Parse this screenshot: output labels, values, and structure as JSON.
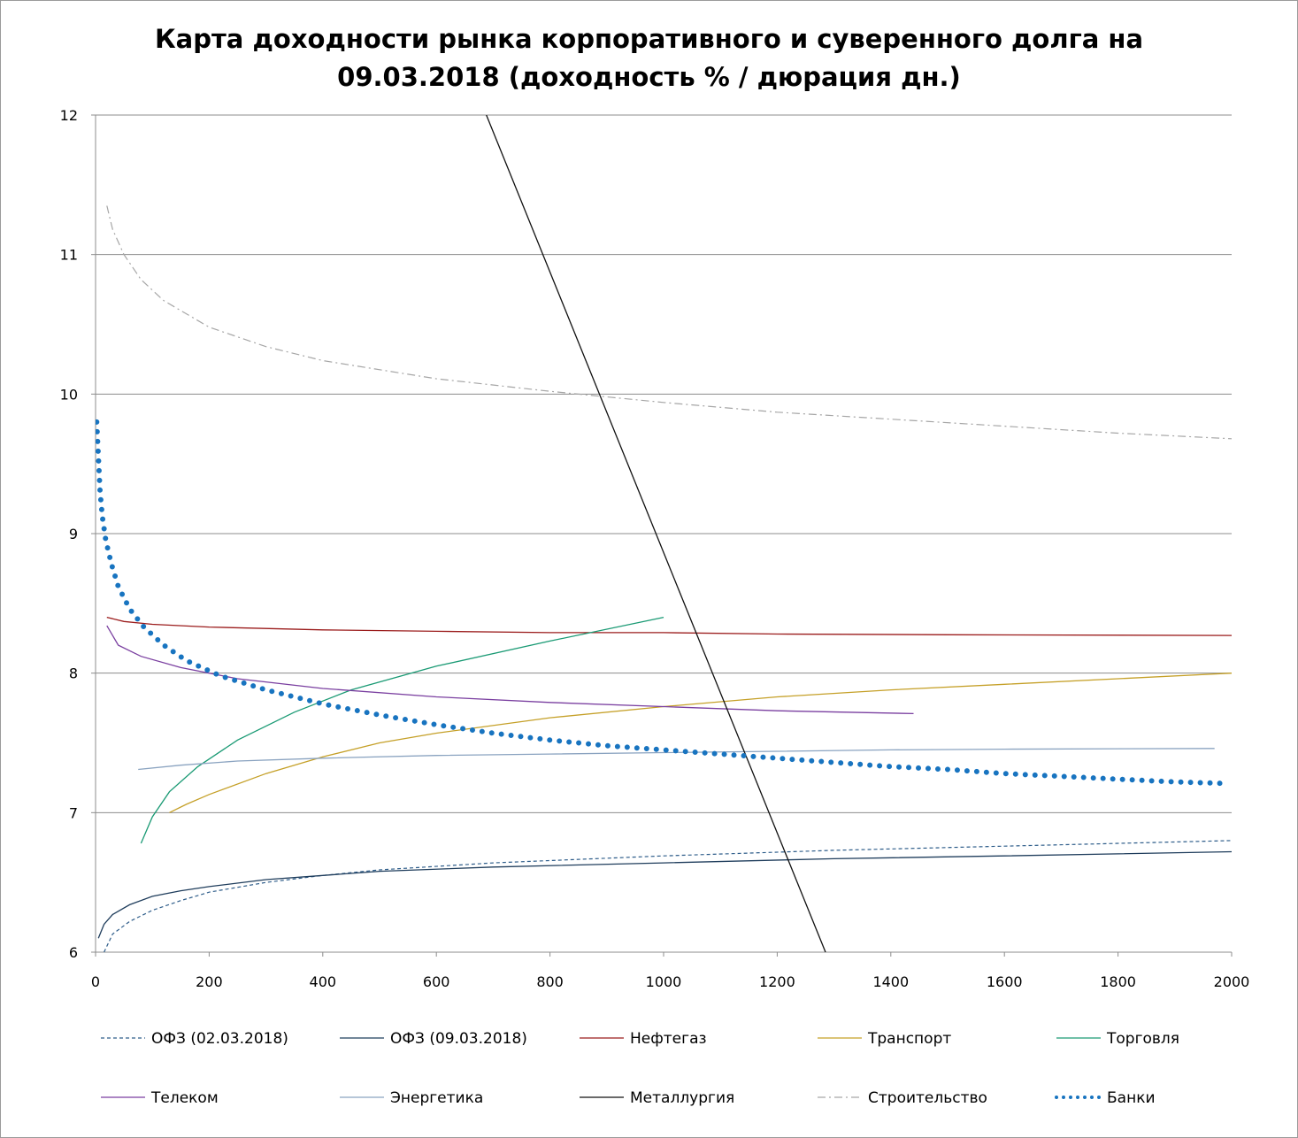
{
  "chart_data": {
    "type": "line",
    "title_lines": [
      "Карта доходности рынка корпоративного и суверенного долга на",
      "09.03.2018 (доходность % / дюрация дн.)"
    ],
    "xlabel": "",
    "ylabel": "",
    "xlim": [
      0,
      2000
    ],
    "ylim": [
      6,
      12
    ],
    "x_ticks": [
      0,
      200,
      400,
      600,
      800,
      1000,
      1200,
      1400,
      1600,
      1800,
      2000
    ],
    "y_ticks": [
      6,
      7,
      8,
      9,
      10,
      11,
      12
    ],
    "grid": "horizontal",
    "legend_position": "bottom",
    "series": [
      {
        "name": "ОФЗ (02.03.2018)",
        "color": "#2e5d8a",
        "dash": "4,3",
        "width": 1.2,
        "points": [
          [
            15,
            6.0
          ],
          [
            30,
            6.13
          ],
          [
            60,
            6.22
          ],
          [
            100,
            6.3
          ],
          [
            150,
            6.37
          ],
          [
            200,
            6.43
          ],
          [
            300,
            6.5
          ],
          [
            400,
            6.55
          ],
          [
            500,
            6.59
          ],
          [
            700,
            6.64
          ],
          [
            1000,
            6.69
          ],
          [
            1300,
            6.73
          ],
          [
            1600,
            6.76
          ],
          [
            2000,
            6.8
          ]
        ]
      },
      {
        "name": "ОФЗ (09.03.2018)",
        "color": "#1f3d5c",
        "dash": "",
        "width": 1.3,
        "points": [
          [
            5,
            6.1
          ],
          [
            15,
            6.2
          ],
          [
            30,
            6.27
          ],
          [
            60,
            6.34
          ],
          [
            100,
            6.4
          ],
          [
            150,
            6.44
          ],
          [
            200,
            6.47
          ],
          [
            300,
            6.52
          ],
          [
            400,
            6.55
          ],
          [
            500,
            6.58
          ],
          [
            700,
            6.61
          ],
          [
            1000,
            6.64
          ],
          [
            1300,
            6.67
          ],
          [
            1600,
            6.69
          ],
          [
            2000,
            6.72
          ]
        ]
      },
      {
        "name": "Нефтегаз",
        "color": "#9b1c1c",
        "dash": "",
        "width": 1.3,
        "points": [
          [
            20,
            8.4
          ],
          [
            50,
            8.37
          ],
          [
            100,
            8.35
          ],
          [
            200,
            8.33
          ],
          [
            400,
            8.31
          ],
          [
            600,
            8.3
          ],
          [
            800,
            8.29
          ],
          [
            1000,
            8.29
          ],
          [
            1200,
            8.28
          ],
          [
            1500,
            8.275
          ],
          [
            2000,
            8.27
          ]
        ]
      },
      {
        "name": "Транспорт",
        "color": "#c5a028",
        "dash": "",
        "width": 1.3,
        "points": [
          [
            130,
            7.0
          ],
          [
            160,
            7.06
          ],
          [
            200,
            7.13
          ],
          [
            300,
            7.28
          ],
          [
            400,
            7.4
          ],
          [
            500,
            7.5
          ],
          [
            600,
            7.57
          ],
          [
            800,
            7.68
          ],
          [
            1000,
            7.76
          ],
          [
            1200,
            7.83
          ],
          [
            1400,
            7.88
          ],
          [
            1600,
            7.92
          ],
          [
            1800,
            7.96
          ],
          [
            2000,
            8.0
          ]
        ]
      },
      {
        "name": "Торговля",
        "color": "#1a9a74",
        "dash": "",
        "width": 1.3,
        "points": [
          [
            80,
            6.78
          ],
          [
            100,
            6.97
          ],
          [
            130,
            7.15
          ],
          [
            180,
            7.33
          ],
          [
            250,
            7.52
          ],
          [
            350,
            7.72
          ],
          [
            450,
            7.88
          ],
          [
            600,
            8.05
          ],
          [
            800,
            8.23
          ],
          [
            1000,
            8.4
          ]
        ]
      },
      {
        "name": "Телеком",
        "color": "#7a3fa0",
        "dash": "",
        "width": 1.3,
        "points": [
          [
            20,
            8.34
          ],
          [
            40,
            8.2
          ],
          [
            80,
            8.12
          ],
          [
            150,
            8.04
          ],
          [
            250,
            7.96
          ],
          [
            400,
            7.89
          ],
          [
            600,
            7.83
          ],
          [
            800,
            7.79
          ],
          [
            1000,
            7.76
          ],
          [
            1200,
            7.73
          ],
          [
            1440,
            7.71
          ]
        ]
      },
      {
        "name": "Энергетика",
        "color": "#8aa3c0",
        "dash": "",
        "width": 1.3,
        "points": [
          [
            75,
            7.31
          ],
          [
            150,
            7.34
          ],
          [
            250,
            7.37
          ],
          [
            400,
            7.39
          ],
          [
            600,
            7.41
          ],
          [
            800,
            7.42
          ],
          [
            1000,
            7.43
          ],
          [
            1200,
            7.44
          ],
          [
            1400,
            7.45
          ],
          [
            1600,
            7.455
          ],
          [
            1970,
            7.46
          ]
        ]
      },
      {
        "name": "Металлургия",
        "color": "#111111",
        "dash": "",
        "width": 1.3,
        "points": [
          [
            688,
            12.0
          ],
          [
            1285,
            6.0
          ]
        ]
      },
      {
        "name": "Строительство",
        "color": "#a6a6a6",
        "dash": "9,4,2,4",
        "width": 1.2,
        "points": [
          [
            20,
            11.35
          ],
          [
            30,
            11.18
          ],
          [
            50,
            11.0
          ],
          [
            80,
            10.82
          ],
          [
            120,
            10.67
          ],
          [
            200,
            10.48
          ],
          [
            300,
            10.34
          ],
          [
            400,
            10.24
          ],
          [
            600,
            10.11
          ],
          [
            800,
            10.02
          ],
          [
            1000,
            9.94
          ],
          [
            1200,
            9.87
          ],
          [
            1400,
            9.82
          ],
          [
            1600,
            9.77
          ],
          [
            1800,
            9.72
          ],
          [
            2000,
            9.68
          ]
        ]
      },
      {
        "name": "Банки",
        "color": "#1874c0",
        "dash": "0,11",
        "width": 6,
        "points": [
          [
            2,
            9.8
          ],
          [
            5,
            9.55
          ],
          [
            8,
            9.3
          ],
          [
            12,
            9.12
          ],
          [
            18,
            8.95
          ],
          [
            28,
            8.78
          ],
          [
            40,
            8.62
          ],
          [
            60,
            8.46
          ],
          [
            85,
            8.33
          ],
          [
            120,
            8.2
          ],
          [
            160,
            8.09
          ],
          [
            220,
            7.98
          ],
          [
            300,
            7.88
          ],
          [
            400,
            7.78
          ],
          [
            500,
            7.7
          ],
          [
            600,
            7.63
          ],
          [
            700,
            7.57
          ],
          [
            800,
            7.52
          ],
          [
            900,
            7.48
          ],
          [
            1000,
            7.45
          ],
          [
            1100,
            7.42
          ],
          [
            1200,
            7.39
          ],
          [
            1300,
            7.36
          ],
          [
            1400,
            7.33
          ],
          [
            1500,
            7.31
          ],
          [
            1600,
            7.28
          ],
          [
            1700,
            7.26
          ],
          [
            1800,
            7.24
          ],
          [
            1900,
            7.22
          ],
          [
            1985,
            7.21
          ]
        ]
      }
    ]
  }
}
